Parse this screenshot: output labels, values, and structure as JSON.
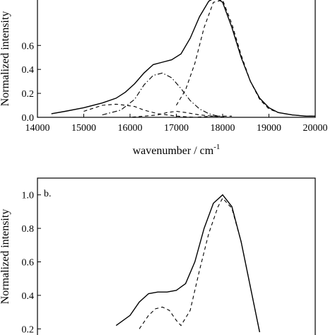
{
  "chart_data": [
    {
      "type": "line",
      "panel_label": "",
      "xlabel": "wavenumber / cm",
      "xlabel_sup": "-1",
      "ylabel": "Normalized intensity",
      "xlim": [
        14000,
        20000
      ],
      "ylim": [
        0,
        1.05
      ],
      "x_ticks": [
        14000,
        15000,
        16000,
        17000,
        18000,
        19000,
        20000
      ],
      "y_ticks": [
        0.0,
        0.2,
        0.4,
        0.6
      ],
      "y_tick_labels": [
        "0.0",
        "0.2",
        "0.4",
        "0.6"
      ],
      "series": [
        {
          "style": "solid",
          "x": [
            14300,
            14600,
            15000,
            15400,
            15700,
            15900,
            16100,
            16300,
            16500,
            16700,
            16900,
            17100,
            17300,
            17500,
            17700,
            17850,
            18000,
            18200,
            18400,
            18600,
            18800,
            19000,
            19200,
            19500,
            19800,
            20000
          ],
          "y": [
            0.03,
            0.05,
            0.08,
            0.12,
            0.16,
            0.21,
            0.28,
            0.37,
            0.44,
            0.46,
            0.48,
            0.53,
            0.66,
            0.84,
            0.97,
            1.0,
            0.96,
            0.75,
            0.5,
            0.3,
            0.16,
            0.08,
            0.04,
            0.02,
            0.01,
            0.01
          ]
        },
        {
          "style": "dashed",
          "x": [
            17000,
            17200,
            17400,
            17600,
            17800,
            18000,
            18200,
            18400,
            18600,
            18800,
            19000,
            19200,
            19500,
            19800,
            20000
          ],
          "y": [
            0.1,
            0.23,
            0.45,
            0.75,
            0.96,
            0.98,
            0.78,
            0.52,
            0.3,
            0.15,
            0.07,
            0.04,
            0.02,
            0.01,
            0.01
          ]
        },
        {
          "style": "dash-dot",
          "x": [
            15400,
            15800,
            16100,
            16300,
            16500,
            16700,
            16900,
            17100,
            17300,
            17500,
            17700,
            17900
          ],
          "y": [
            0.02,
            0.06,
            0.15,
            0.27,
            0.35,
            0.37,
            0.33,
            0.24,
            0.14,
            0.07,
            0.03,
            0.01
          ]
        },
        {
          "style": "dashed",
          "x": [
            15000,
            15400,
            15700,
            15900,
            16100,
            16300,
            16600,
            17000,
            17400,
            17800
          ],
          "y": [
            0.05,
            0.1,
            0.11,
            0.1,
            0.09,
            0.06,
            0.03,
            0.01,
            0.0,
            0.0
          ]
        },
        {
          "style": "dashed",
          "x": [
            15500,
            16000,
            16300,
            16600,
            16800,
            17000,
            17200,
            17500,
            17800,
            18100
          ],
          "y": [
            0.0,
            0.0,
            0.01,
            0.02,
            0.04,
            0.05,
            0.04,
            0.02,
            0.01,
            0.0
          ]
        },
        {
          "style": "dashed",
          "x": [
            16500,
            17000,
            17400,
            17800,
            18200
          ],
          "y": [
            0.0,
            0.0,
            0.0,
            0.01,
            0.01
          ]
        }
      ]
    },
    {
      "type": "line",
      "panel_label": "b.",
      "xlabel": "",
      "ylabel": "Normalized intensity",
      "xlim": [
        14000,
        20000
      ],
      "ylim": [
        0.1,
        1.1
      ],
      "x_ticks": [],
      "y_ticks": [
        0.2,
        0.4,
        0.6,
        0.8,
        1.0
      ],
      "y_tick_labels": [
        "0.2",
        "0.4",
        "0.6",
        "0.8",
        "1.0"
      ],
      "series": [
        {
          "style": "solid",
          "x": [
            15700,
            16000,
            16200,
            16400,
            16600,
            16800,
            17000,
            17200,
            17400,
            17600,
            17800,
            18000,
            18200,
            18400,
            18600,
            18800
          ],
          "y": [
            0.22,
            0.28,
            0.36,
            0.41,
            0.42,
            0.42,
            0.43,
            0.47,
            0.6,
            0.8,
            0.95,
            1.0,
            0.93,
            0.72,
            0.45,
            0.18
          ]
        },
        {
          "style": "dashed",
          "x": [
            16200,
            16400,
            16550,
            16700,
            16850,
            17000,
            17100,
            17300,
            17500,
            17700,
            17900,
            18000,
            18200,
            18400,
            18600,
            18800
          ],
          "y": [
            0.2,
            0.28,
            0.32,
            0.33,
            0.31,
            0.25,
            0.22,
            0.31,
            0.55,
            0.77,
            0.93,
            0.98,
            0.92,
            0.72,
            0.45,
            0.18
          ]
        }
      ]
    }
  ]
}
